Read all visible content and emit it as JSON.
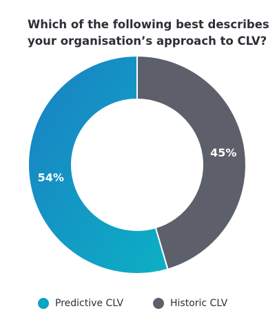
{
  "chart_data": {
    "type": "pie",
    "title": "Which of the following best describes your organisation’s approach to CLV?",
    "title_lines": [
      "Which of the following best describes",
      "your organisation’s approach to CLV?"
    ],
    "series": [
      {
        "name": "Predictive CLV",
        "value": 54,
        "label": "54%",
        "color": "#0aa3c3",
        "color_dark": "#0f83c4"
      },
      {
        "name": "Historic CLV",
        "value": 45,
        "label": "45%",
        "color": "#5d606a"
      }
    ],
    "donut": true,
    "legend_position": "bottom",
    "grid": false
  }
}
